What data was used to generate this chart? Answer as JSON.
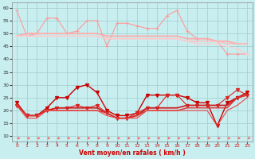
{
  "xlabel": "Vent moyen/en rafales ( km/h )",
  "background_color": "#c8eef0",
  "grid_color": "#a0cccc",
  "xlim": [
    -0.5,
    23.5
  ],
  "ylim": [
    8,
    62
  ],
  "yticks": [
    10,
    15,
    20,
    25,
    30,
    35,
    40,
    45,
    50,
    55,
    60
  ],
  "xticks": [
    0,
    1,
    2,
    3,
    4,
    5,
    6,
    7,
    8,
    9,
    10,
    11,
    12,
    13,
    14,
    15,
    16,
    17,
    18,
    19,
    20,
    21,
    22,
    23
  ],
  "x_all": [
    0,
    1,
    2,
    3,
    4,
    5,
    6,
    7,
    8,
    9,
    10,
    11,
    12,
    13,
    14,
    15,
    16,
    17,
    18,
    19,
    20,
    21,
    22,
    23
  ],
  "series_light": [
    {
      "y": [
        59,
        49,
        50,
        56,
        56,
        50,
        51,
        55,
        55,
        45,
        54,
        54,
        53,
        52,
        52,
        57,
        59,
        51,
        48,
        48,
        47,
        42,
        42,
        42
      ],
      "color": "#ff9999",
      "marker": "+",
      "lw": 0.8,
      "ms": 3.5,
      "x_start": 0
    },
    {
      "y": [
        49,
        50,
        50,
        50,
        50,
        50,
        50,
        50,
        50,
        49,
        49,
        49,
        49,
        49,
        49,
        49,
        49,
        48,
        48,
        48,
        47,
        47,
        46,
        46
      ],
      "color": "#ffaaaa",
      "marker": null,
      "lw": 1.3,
      "ms": 0,
      "x_start": 0
    },
    {
      "y": [
        49,
        49,
        49,
        49,
        49,
        49,
        49,
        49,
        49,
        48,
        48,
        48,
        48,
        48,
        48,
        48,
        48,
        47,
        47,
        47,
        47,
        46,
        46,
        46
      ],
      "color": "#ffbbbb",
      "marker": null,
      "lw": 1.0,
      "ms": 0,
      "x_start": 0
    },
    {
      "y": [
        49,
        49,
        49,
        49,
        49,
        49,
        49,
        49,
        49,
        48,
        48,
        48,
        48,
        48,
        48,
        48,
        48,
        47,
        46,
        46,
        46,
        45,
        44,
        42
      ],
      "color": "#ffcccc",
      "marker": "+",
      "lw": 0.8,
      "ms": 3.5,
      "x_start": 0
    }
  ],
  "series_dark": [
    {
      "y": [
        23,
        18,
        18,
        21,
        25,
        25,
        29,
        30,
        27,
        20,
        18,
        18,
        19,
        26,
        26,
        26,
        26,
        25,
        23,
        23,
        14,
        23,
        25,
        27
      ],
      "color": "#cc0000",
      "marker": "v",
      "lw": 1.0,
      "ms": 3,
      "x_start": 0
    },
    {
      "y": [
        22,
        18,
        18,
        20,
        21,
        21,
        22,
        21,
        22,
        19,
        17,
        17,
        19,
        21,
        21,
        26,
        26,
        22,
        22,
        22,
        22,
        25,
        28,
        26
      ],
      "color": "#dd2222",
      "marker": "v",
      "lw": 0.8,
      "ms": 3,
      "x_start": 0
    },
    {
      "y": [
        22,
        18,
        18,
        20,
        21,
        21,
        21,
        21,
        21,
        19,
        17,
        17,
        18,
        21,
        21,
        21,
        21,
        22,
        22,
        22,
        22,
        22,
        25,
        26
      ],
      "color": "#cc2222",
      "marker": null,
      "lw": 1.3,
      "ms": 0,
      "x_start": 0
    },
    {
      "y": [
        22,
        18,
        18,
        20,
        20,
        20,
        20,
        20,
        20,
        19,
        17,
        17,
        18,
        20,
        20,
        20,
        20,
        21,
        21,
        21,
        21,
        21,
        25,
        26
      ],
      "color": "#dd3333",
      "marker": null,
      "lw": 1.0,
      "ms": 0,
      "x_start": 0
    },
    {
      "y": [
        22,
        17,
        17,
        20,
        20,
        20,
        20,
        20,
        20,
        18,
        17,
        17,
        17,
        20,
        20,
        20,
        20,
        20,
        20,
        20,
        14,
        20,
        22,
        25
      ],
      "color": "#ee4444",
      "marker": null,
      "lw": 0.8,
      "ms": 0,
      "x_start": 0
    }
  ],
  "arrow_color": "#ff5555"
}
